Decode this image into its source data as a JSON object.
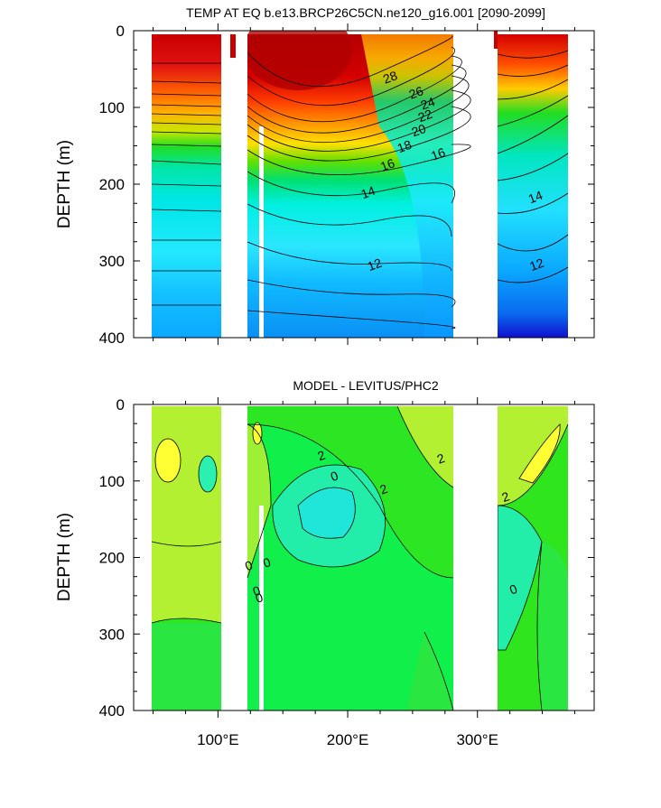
{
  "chart_data": [
    {
      "type": "contour",
      "title": "TEMP AT EQ b.e13.BRCP26C5CN.ne120_g16.001 [2090-2099]",
      "ylabel": "DEPTH (m)",
      "xlabel": "",
      "xlim": [
        35,
        390
      ],
      "ylim": [
        400,
        0
      ],
      "y_reversed": true,
      "y_ticks": [
        "0",
        "100",
        "200",
        "300",
        "400"
      ],
      "x_ticks": [
        "100°E",
        "200°E",
        "300°E"
      ],
      "x_tick_values": [
        100,
        200,
        300
      ],
      "y_tick_values": [
        0,
        100,
        200,
        300,
        400
      ],
      "land_gaps_lon": [
        [
          97,
          118
        ],
        [
          125,
          128
        ],
        [
          279,
          313
        ]
      ],
      "contour_levels_labeled": [
        "28",
        "26",
        "24",
        "22",
        "20",
        "18",
        "16",
        "14",
        "12",
        "16",
        "14",
        "12"
      ],
      "label_positions": [
        {
          "text": "28",
          "lon": 233,
          "depth": 62
        },
        {
          "text": "26",
          "lon": 253,
          "depth": 82
        },
        {
          "text": "24",
          "lon": 262,
          "depth": 96
        },
        {
          "text": "22",
          "lon": 260,
          "depth": 112
        },
        {
          "text": "20",
          "lon": 255,
          "depth": 131
        },
        {
          "text": "18",
          "lon": 244,
          "depth": 152
        },
        {
          "text": "16",
          "lon": 231,
          "depth": 176
        },
        {
          "text": "14",
          "lon": 216,
          "depth": 212
        },
        {
          "text": "12",
          "lon": 221,
          "depth": 306
        },
        {
          "text": "16",
          "lon": 270,
          "depth": 162
        },
        {
          "text": "14",
          "lon": 345,
          "depth": 218
        },
        {
          "text": "12",
          "lon": 346,
          "depth": 306
        }
      ],
      "legend": "none",
      "grid": false
    },
    {
      "type": "contour",
      "title": "MODEL - LEVITUS/PHC2",
      "ylabel": "DEPTH (m)",
      "xlabel": "",
      "xlim": [
        35,
        390
      ],
      "ylim": [
        400,
        0
      ],
      "y_reversed": true,
      "y_ticks": [
        "0",
        "100",
        "200",
        "300",
        "400"
      ],
      "x_ticks": [
        "100°E",
        "200°E",
        "300°E"
      ],
      "x_tick_values": [
        100,
        200,
        300
      ],
      "y_tick_values": [
        0,
        100,
        200,
        300,
        400
      ],
      "land_gaps_lon": [
        [
          97,
          118
        ],
        [
          125,
          128
        ],
        [
          279,
          313
        ]
      ],
      "label_positions": [
        {
          "text": "2",
          "lon": 180,
          "depth": 68
        },
        {
          "text": "0",
          "lon": 190,
          "depth": 95
        },
        {
          "text": "2",
          "lon": 228,
          "depth": 112
        },
        {
          "text": "2",
          "lon": 272,
          "depth": 72
        },
        {
          "text": "2",
          "lon": 322,
          "depth": 122
        },
        {
          "text": "0",
          "lon": 138,
          "depth": 208
        },
        {
          "text": "0",
          "lon": 124,
          "depth": 212
        },
        {
          "text": "0",
          "lon": 130,
          "depth": 245
        },
        {
          "text": "0",
          "lon": 132,
          "depth": 254
        },
        {
          "text": "0",
          "lon": 328,
          "depth": 243
        }
      ],
      "legend": "none",
      "grid": false
    }
  ]
}
